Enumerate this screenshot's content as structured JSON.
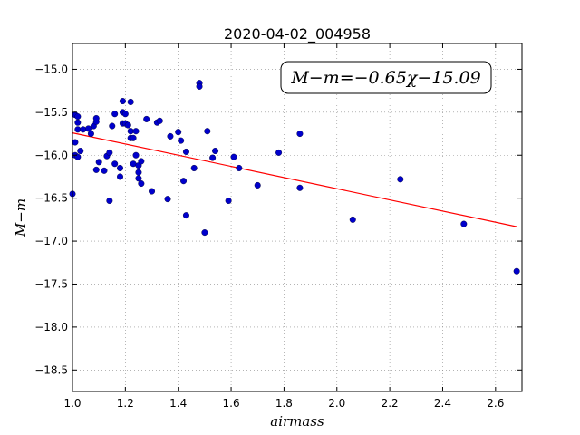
{
  "chart_data": {
    "type": "scatter",
    "title": "2020-04-02_004958",
    "xlabel": "airmass",
    "ylabel": "M−m",
    "xlim": [
      1.0,
      2.7
    ],
    "ylim": [
      -18.75,
      -14.7
    ],
    "xticks": [
      1.0,
      1.2,
      1.4,
      1.6,
      1.8,
      2.0,
      2.2,
      2.4,
      2.6
    ],
    "xtick_labels": [
      "1.0",
      "1.2",
      "1.4",
      "1.6",
      "1.8",
      "2.0",
      "2.2",
      "2.4",
      "2.6"
    ],
    "yticks": [
      -15.0,
      -15.5,
      -16.0,
      -16.5,
      -17.0,
      -17.5,
      -18.0,
      -18.5
    ],
    "ytick_labels": [
      "−15.0",
      "−15.5",
      "−16.0",
      "−16.5",
      "−17.0",
      "−17.5",
      "−18.0",
      "−18.5"
    ],
    "grid": true,
    "annotation": "M−m=−0.65χ−15.09",
    "annotation_position": "top-right",
    "point_color": "#0000cc",
    "fit_color": "#ff0000",
    "fit": {
      "slope": -0.65,
      "intercept": -15.09,
      "x_range": [
        1.0,
        2.68
      ]
    },
    "points": [
      [
        1.0,
        -16.45
      ],
      [
        1.01,
        -15.53
      ],
      [
        1.01,
        -15.85
      ],
      [
        1.01,
        -16.0
      ],
      [
        1.02,
        -16.02
      ],
      [
        1.02,
        -15.55
      ],
      [
        1.02,
        -15.62
      ],
      [
        1.02,
        -15.7
      ],
      [
        1.03,
        -15.95
      ],
      [
        1.04,
        -15.7
      ],
      [
        1.06,
        -15.69
      ],
      [
        1.07,
        -15.75
      ],
      [
        1.08,
        -15.66
      ],
      [
        1.09,
        -15.61
      ],
      [
        1.09,
        -15.57
      ],
      [
        1.09,
        -16.17
      ],
      [
        1.1,
        -16.08
      ],
      [
        1.12,
        -16.18
      ],
      [
        1.13,
        -16.01
      ],
      [
        1.14,
        -15.97
      ],
      [
        1.14,
        -16.53
      ],
      [
        1.15,
        -15.66
      ],
      [
        1.16,
        -15.52
      ],
      [
        1.16,
        -16.1
      ],
      [
        1.18,
        -16.15
      ],
      [
        1.18,
        -16.25
      ],
      [
        1.19,
        -15.5
      ],
      [
        1.19,
        -15.37
      ],
      [
        1.19,
        -15.63
      ],
      [
        1.2,
        -15.52
      ],
      [
        1.2,
        -15.63
      ],
      [
        1.21,
        -15.65
      ],
      [
        1.22,
        -15.38
      ],
      [
        1.22,
        -15.72
      ],
      [
        1.22,
        -15.8
      ],
      [
        1.23,
        -15.8
      ],
      [
        1.23,
        -16.1
      ],
      [
        1.24,
        -15.72
      ],
      [
        1.24,
        -16.0
      ],
      [
        1.25,
        -16.12
      ],
      [
        1.25,
        -16.2
      ],
      [
        1.25,
        -16.27
      ],
      [
        1.26,
        -16.33
      ],
      [
        1.26,
        -16.07
      ],
      [
        1.28,
        -15.58
      ],
      [
        1.3,
        -16.42
      ],
      [
        1.32,
        -15.62
      ],
      [
        1.33,
        -15.6
      ],
      [
        1.36,
        -16.51
      ],
      [
        1.37,
        -15.78
      ],
      [
        1.4,
        -15.73
      ],
      [
        1.41,
        -15.83
      ],
      [
        1.42,
        -16.3
      ],
      [
        1.43,
        -15.96
      ],
      [
        1.43,
        -16.7
      ],
      [
        1.46,
        -16.15
      ],
      [
        1.48,
        -15.16
      ],
      [
        1.48,
        -15.2
      ],
      [
        1.5,
        -16.9
      ],
      [
        1.51,
        -15.72
      ],
      [
        1.53,
        -16.03
      ],
      [
        1.54,
        -15.95
      ],
      [
        1.59,
        -16.53
      ],
      [
        1.61,
        -16.02
      ],
      [
        1.63,
        -16.15
      ],
      [
        1.7,
        -16.35
      ],
      [
        1.78,
        -15.97
      ],
      [
        1.86,
        -15.75
      ],
      [
        1.86,
        -16.38
      ],
      [
        2.06,
        -16.75
      ],
      [
        2.24,
        -16.28
      ],
      [
        2.48,
        -16.8
      ],
      [
        2.68,
        -17.35
      ]
    ]
  }
}
